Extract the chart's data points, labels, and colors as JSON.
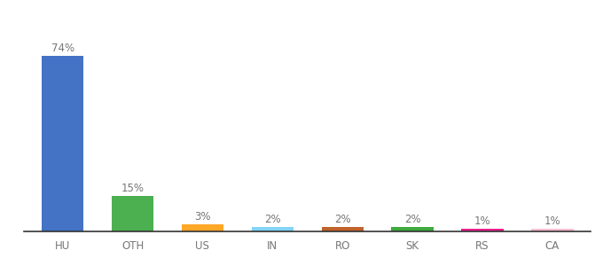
{
  "categories": [
    "HU",
    "OTH",
    "US",
    "IN",
    "RO",
    "SK",
    "RS",
    "CA"
  ],
  "values": [
    74,
    15,
    3,
    2,
    2,
    2,
    1,
    1
  ],
  "bar_colors": [
    "#4472C4",
    "#4CAF50",
    "#FFA726",
    "#81D4FA",
    "#C0622A",
    "#3DAA3D",
    "#E91E8C",
    "#F8BBD0"
  ],
  "ylim": [
    0,
    84
  ],
  "background_color": "#ffffff",
  "label_fontsize": 8.5,
  "xlabel_fontsize": 8.5,
  "label_color": "#777777",
  "axis_color": "#222222",
  "bar_width": 0.6
}
